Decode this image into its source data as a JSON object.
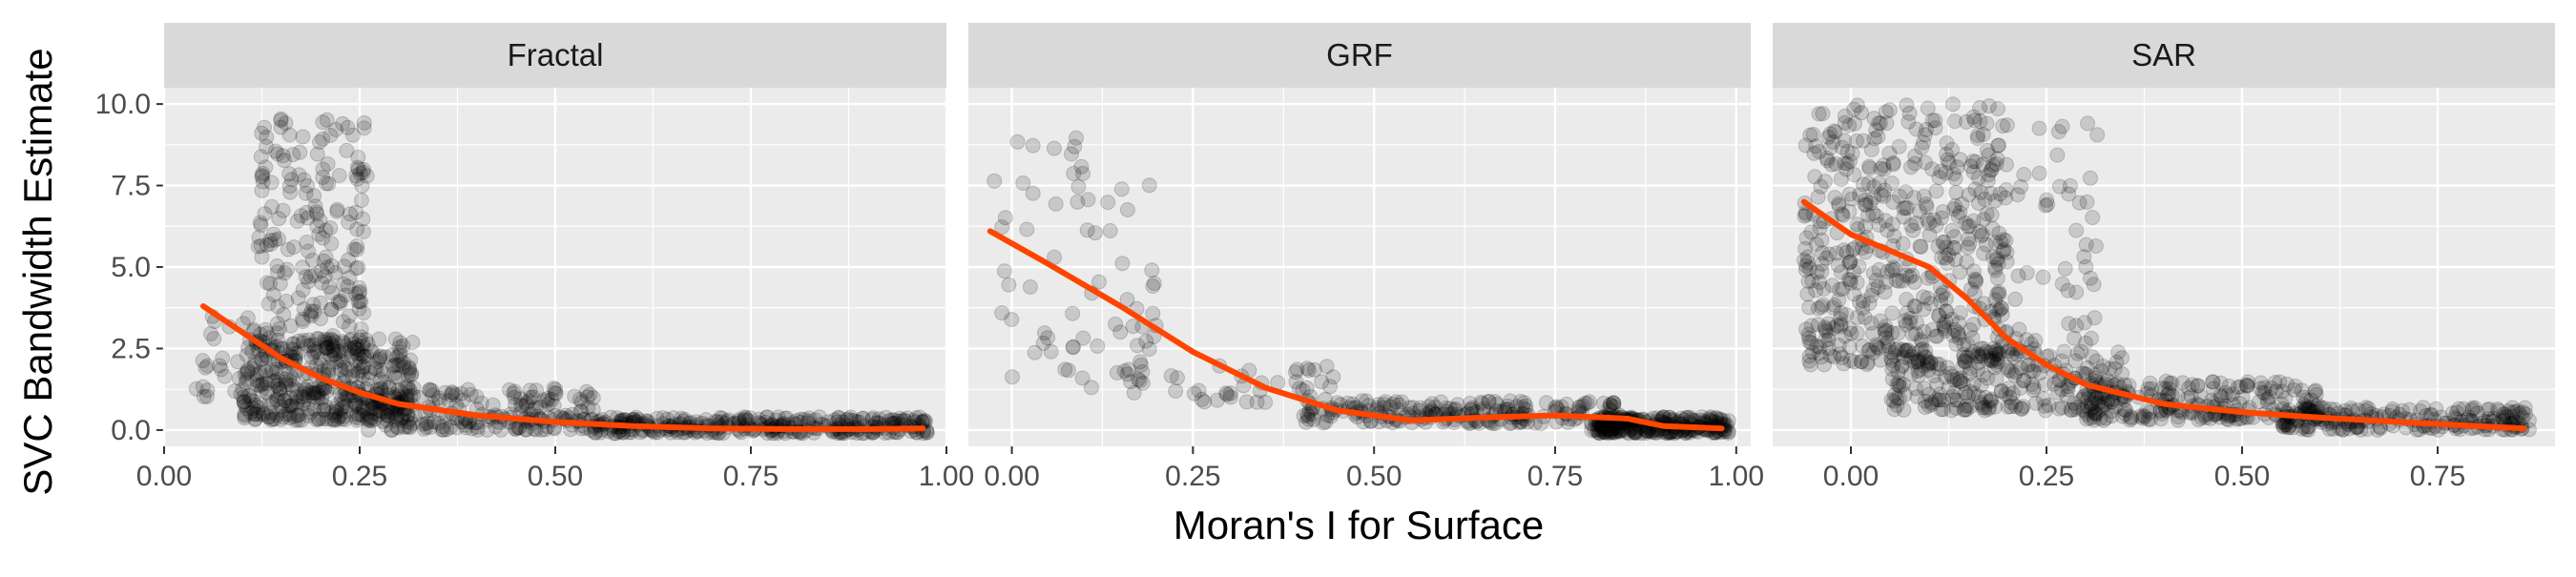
{
  "chart_data": {
    "type": "scatter",
    "xlabel": "Moran's I for Surface",
    "ylabel": "SVC Bandwidth Estimate",
    "y_ticks": [
      "0.0",
      "2.5",
      "5.0",
      "7.5",
      "10.0"
    ],
    "y_tick_values": [
      0,
      2.5,
      5,
      7.5,
      10
    ],
    "ylim": [
      -0.5,
      10.5
    ],
    "grid": true,
    "legend": "none",
    "colors": {
      "panel_bg": "#ebebeb",
      "strip_bg": "#d9d9d9",
      "grid": "#ffffff",
      "points": "#000000",
      "smooth": "#ff4500",
      "tick": "#333333"
    },
    "point_opacity": 0.15,
    "panels": [
      {
        "strip": "Fractal",
        "xlim": [
          0.0,
          1.0
        ],
        "x_ticks": [
          "0.00",
          "0.25",
          "0.50",
          "0.75",
          "1.00"
        ],
        "x_tick_values": [
          0,
          0.25,
          0.5,
          0.75,
          1.0
        ],
        "clusters": [
          {
            "xmin": 0.1,
            "xmax": 0.32,
            "ymin": 0.3,
            "ymax": 2.8,
            "n": 420
          },
          {
            "xmin": 0.12,
            "xmax": 0.26,
            "ymin": 2.5,
            "ymax": 9.8,
            "n": 210
          },
          {
            "xmin": 0.04,
            "xmax": 0.12,
            "ymin": 1.0,
            "ymax": 3.5,
            "n": 30
          },
          {
            "xmin": 0.26,
            "xmax": 0.55,
            "ymin": 0.0,
            "ymax": 1.3,
            "n": 200
          },
          {
            "xmin": 0.55,
            "xmax": 0.98,
            "ymin": -0.1,
            "ymax": 0.4,
            "n": 320
          }
        ],
        "smooth": {
          "x": [
            0.05,
            0.1,
            0.15,
            0.2,
            0.25,
            0.3,
            0.4,
            0.5,
            0.6,
            0.7,
            0.8,
            0.9,
            0.97
          ],
          "y": [
            3.8,
            3.0,
            2.2,
            1.6,
            1.15,
            0.8,
            0.45,
            0.25,
            0.12,
            0.05,
            0.03,
            0.03,
            0.05
          ]
        }
      },
      {
        "strip": "GRF",
        "xlim": [
          -0.06,
          1.02
        ],
        "x_ticks": [
          "0.00",
          "0.25",
          "0.50",
          "0.75",
          "1.00"
        ],
        "x_tick_values": [
          0,
          0.25,
          0.5,
          0.75,
          1.0
        ],
        "clusters": [
          {
            "xmin": -0.03,
            "xmax": 0.2,
            "ymin": 1.3,
            "ymax": 9.0,
            "n": 70
          },
          {
            "xmin": 0.15,
            "xmax": 0.45,
            "ymin": 0.8,
            "ymax": 2.0,
            "n": 45
          },
          {
            "xmin": 0.4,
            "xmax": 0.85,
            "ymin": 0.2,
            "ymax": 0.9,
            "n": 220
          },
          {
            "xmin": 0.8,
            "xmax": 0.99,
            "ymin": -0.1,
            "ymax": 0.4,
            "n": 260
          }
        ],
        "smooth": {
          "x": [
            -0.03,
            0.05,
            0.15,
            0.25,
            0.35,
            0.45,
            0.55,
            0.65,
            0.75,
            0.85,
            0.9,
            0.98
          ],
          "y": [
            6.1,
            5.1,
            3.8,
            2.4,
            1.3,
            0.6,
            0.3,
            0.38,
            0.45,
            0.35,
            0.12,
            0.05
          ]
        }
      },
      {
        "strip": "SAR",
        "xlim": [
          -0.1,
          0.9
        ],
        "x_ticks": [
          "0.00",
          "0.25",
          "0.50",
          "0.75"
        ],
        "x_tick_values": [
          0,
          0.25,
          0.5,
          0.75
        ],
        "clusters": [
          {
            "xmin": -0.06,
            "xmax": 0.2,
            "ymin": 2.0,
            "ymax": 10.0,
            "n": 520
          },
          {
            "xmin": 0.18,
            "xmax": 0.32,
            "ymin": 2.5,
            "ymax": 10.0,
            "n": 60
          },
          {
            "xmin": 0.05,
            "xmax": 0.35,
            "ymin": 0.6,
            "ymax": 2.5,
            "n": 240
          },
          {
            "xmin": 0.3,
            "xmax": 0.6,
            "ymin": 0.3,
            "ymax": 1.5,
            "n": 220
          },
          {
            "xmin": 0.55,
            "xmax": 0.87,
            "ymin": 0.0,
            "ymax": 0.7,
            "n": 200
          }
        ],
        "smooth": {
          "x": [
            -0.06,
            0.0,
            0.05,
            0.1,
            0.15,
            0.2,
            0.25,
            0.3,
            0.4,
            0.5,
            0.6,
            0.7,
            0.8,
            0.86
          ],
          "y": [
            7.0,
            6.0,
            5.5,
            5.0,
            4.0,
            2.8,
            2.0,
            1.4,
            0.8,
            0.55,
            0.38,
            0.25,
            0.12,
            0.05
          ]
        }
      }
    ]
  }
}
